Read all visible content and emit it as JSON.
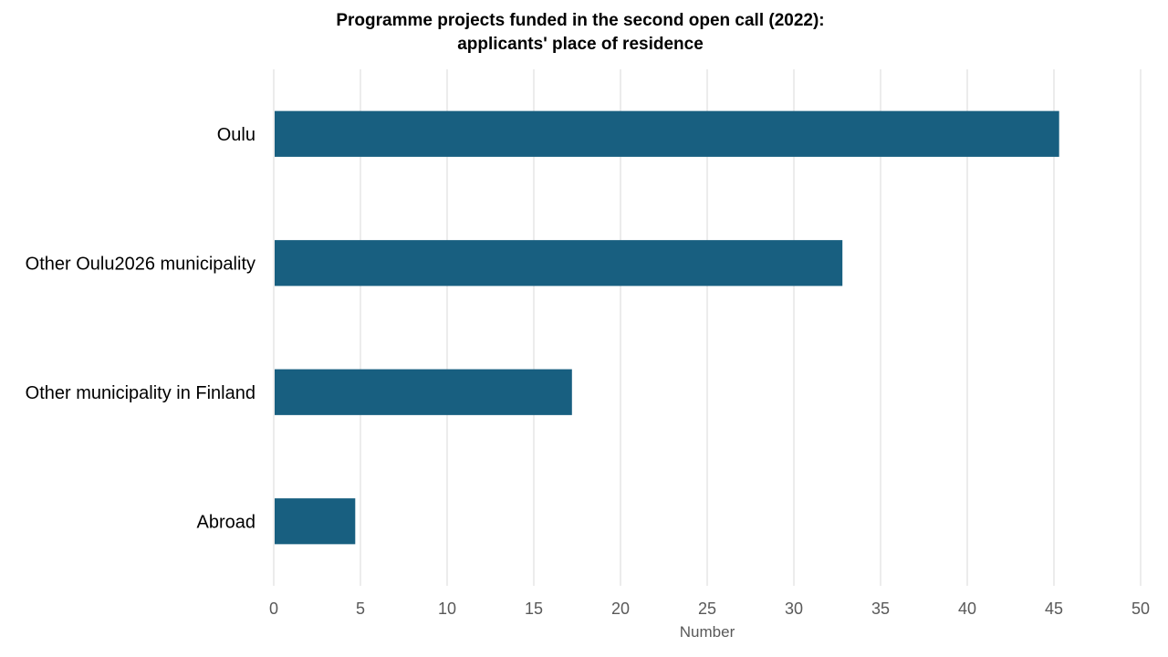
{
  "chart_data": {
    "type": "bar",
    "orientation": "horizontal",
    "title_lines": [
      "Programme projects funded in the second open call (2022):",
      "applicants' place of residence"
    ],
    "categories": [
      "Oulu",
      "Other Oulu2026 municipality",
      "Other municipality in Finland",
      "Abroad"
    ],
    "values": [
      45.3,
      32.8,
      17.2,
      4.7
    ],
    "xlabel": "Number",
    "ylabel": "",
    "xlim": [
      0,
      50
    ],
    "xticks": [
      0,
      5,
      10,
      15,
      20,
      25,
      30,
      35,
      40,
      45,
      50
    ],
    "grid": "vertical",
    "legend": "none",
    "colors": {
      "bar": "#185f80",
      "grid": "#d9d9d9",
      "tick_text": "#595959",
      "category_text": "#000000"
    }
  }
}
